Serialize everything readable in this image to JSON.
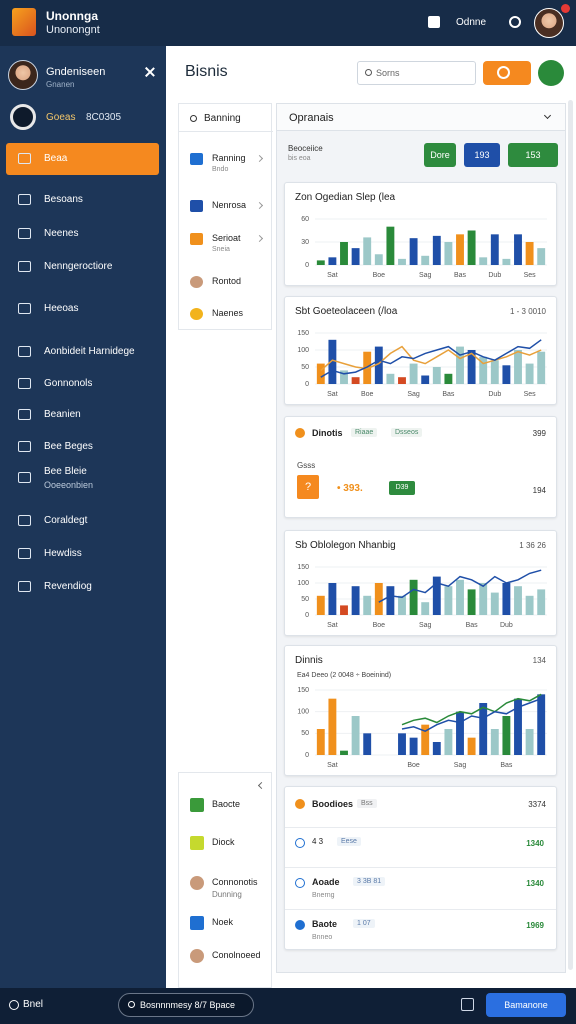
{
  "header": {
    "title": "Unonnga",
    "subtitle": "Unonongnt",
    "user": "Odnne"
  },
  "sidebar": {
    "profile_name": "Gndeniseen",
    "profile_role": "Gnanen",
    "account_name": "Goeas",
    "account_code": "8C0305",
    "items": [
      {
        "label": "Beaa"
      },
      {
        "label": "Besoans"
      },
      {
        "label": "Neenes"
      },
      {
        "label": "Nenngeroctiore"
      },
      {
        "label": "Heeoas"
      },
      {
        "label": "Aonbideit Harnidege"
      },
      {
        "label": "Gonnonols"
      },
      {
        "label": "Beanien"
      },
      {
        "label": "Bee Beges"
      },
      {
        "label": "Bee Bleie",
        "sub": "Ooeeonbien"
      },
      {
        "label": "Coraldegt"
      },
      {
        "label": "Hewdiss"
      },
      {
        "label": "Revendiog"
      }
    ]
  },
  "main": {
    "title": "Bisnis",
    "search": "Sorns"
  },
  "list_panel": {
    "search": "Banning",
    "items": [
      {
        "label": "Ranning",
        "sub": "Bndo"
      },
      {
        "label": "Nenrosa"
      },
      {
        "label": "Serioat",
        "sub": "Sneia"
      },
      {
        "label": "Rontod"
      },
      {
        "label": "Naenes"
      }
    ],
    "bottom_items": [
      {
        "label": "Baocte"
      },
      {
        "label": "Diock"
      },
      {
        "label": "Connonotis",
        "sub": "Dunning"
      },
      {
        "label": "Noek"
      },
      {
        "label": "Conolnoeed"
      }
    ]
  },
  "overview": {
    "title": "Opranais",
    "label": "Beoceiice",
    "sublabel": "bis eoa",
    "buttons": [
      "Dore",
      "193",
      "153"
    ]
  },
  "charts": [
    {
      "title": "Zon Ogedian Slep (lea",
      "ylim": [
        0,
        60
      ],
      "yticks": [
        0,
        30,
        60
      ],
      "categories": [
        null,
        "Sat",
        null,
        null,
        null,
        "Boe",
        null,
        null,
        null,
        "Sag",
        null,
        null,
        "Bas",
        null,
        null,
        "Dub",
        null,
        null,
        "Ses",
        null
      ],
      "bars": {
        "values": [
          6,
          10,
          30,
          22,
          36,
          14,
          50,
          8,
          35,
          12,
          38,
          30,
          40,
          45,
          10,
          40,
          8,
          40,
          30,
          22
        ],
        "colors": [
          "#2a8a3a",
          "#1f4fa8",
          "#2a8a3a",
          "#1f4fa8",
          "#9cc8c8",
          "#9cc8c8",
          "#2a8a3a",
          "#9cc8c8",
          "#1f4fa8",
          "#9cc8c8",
          "#1f4fa8",
          "#9cc8c8",
          "#f0901c",
          "#2a8a3a",
          "#9cc8c8",
          "#1f4fa8",
          "#9cc8c8",
          "#1f4fa8",
          "#f0901c",
          "#9cc8c8"
        ]
      }
    },
    {
      "title": "Sbt Goeteolaceen (/loa",
      "note": "1 - 3 0010",
      "ylim": [
        0,
        150
      ],
      "yticks": [
        0,
        50,
        100,
        150
      ],
      "categories": [
        null,
        "Sat",
        null,
        null,
        "Boe",
        null,
        null,
        null,
        "Sag",
        null,
        null,
        "Bas",
        null,
        null,
        null,
        "Dub",
        null,
        null,
        "Ses",
        null
      ],
      "bars": {
        "values": [
          60,
          130,
          40,
          20,
          95,
          110,
          30,
          20,
          60,
          25,
          50,
          30,
          110,
          100,
          80,
          70,
          55,
          100,
          60,
          95
        ],
        "colors": [
          "#f0901c",
          "#1f4fa8",
          "#9cc8c8",
          "#d44a22",
          "#f0901c",
          "#1f4fa8",
          "#9cc8c8",
          "#d44a22",
          "#9cc8c8",
          "#1f4fa8",
          "#9cc8c8",
          "#2a8a3a",
          "#9cc8c8",
          "#1f4fa8",
          "#9cc8c8",
          "#9cc8c8",
          "#1f4fa8",
          "#9cc8c8",
          "#9cc8c8",
          "#9cc8c8"
        ]
      },
      "lines": [
        {
          "color": "#e8a03a",
          "values": [
            40,
            70,
            60,
            50,
            45,
            60,
            90,
            110,
            70,
            60,
            80,
            100,
            75,
            90,
            60,
            70,
            80,
            95,
            85,
            100
          ]
        },
        {
          "color": "#1f4fa8",
          "values": [
            20,
            40,
            30,
            35,
            50,
            70,
            60,
            80,
            75,
            90,
            100,
            110,
            85,
            95,
            80,
            70,
            90,
            110,
            105,
            130
          ]
        }
      ]
    },
    {
      "title": "Sb Oblolegon Nhanbig",
      "note": "1 36 26",
      "ylim": [
        0,
        150
      ],
      "yticks": [
        0,
        50,
        100,
        150
      ],
      "categories": [
        null,
        "Sat",
        null,
        null,
        null,
        "Boe",
        null,
        null,
        null,
        "Sag",
        null,
        null,
        null,
        "Bas",
        null,
        null,
        "Dub",
        null,
        null,
        null
      ],
      "bars": {
        "values": [
          60,
          100,
          30,
          90,
          60,
          100,
          90,
          60,
          110,
          40,
          120,
          90,
          110,
          80,
          100,
          70,
          100,
          90,
          60,
          80
        ],
        "colors": [
          "#f0901c",
          "#1f4fa8",
          "#d44a22",
          "#1f4fa8",
          "#9cc8c8",
          "#f0901c",
          "#1f4fa8",
          "#9cc8c8",
          "#2a8a3a",
          "#9cc8c8",
          "#1f4fa8",
          "#9cc8c8",
          "#9cc8c8",
          "#2a8a3a",
          "#9cc8c8",
          "#9cc8c8",
          "#1f4fa8",
          "#9cc8c8",
          "#9cc8c8",
          "#9cc8c8"
        ]
      },
      "lines": [
        {
          "color": "#1f4fa8",
          "values": [
            null,
            null,
            null,
            null,
            null,
            40,
            60,
            55,
            80,
            70,
            100,
            90,
            120,
            110,
            90,
            120,
            100,
            110,
            130,
            140
          ]
        }
      ]
    },
    {
      "title": "Dinnis",
      "subtitle": "Ea4  Deeo (2 0048 ÷ Boeinind)",
      "note": "134",
      "ylim": [
        0,
        150
      ],
      "yticks": [
        0,
        50,
        100,
        150
      ],
      "categories": [
        null,
        "Sat",
        null,
        null,
        null,
        null,
        null,
        null,
        "Boe",
        null,
        null,
        null,
        "Sag",
        null,
        null,
        null,
        "Bas",
        null,
        null,
        null
      ],
      "bars": {
        "values": [
          60,
          130,
          10,
          90,
          50,
          null,
          null,
          50,
          40,
          70,
          30,
          60,
          100,
          40,
          120,
          60,
          90,
          130,
          60,
          140
        ],
        "colors": [
          "#f0901c",
          "#f0901c",
          "#2a8a3a",
          "#9cc8c8",
          "#1f4fa8",
          "#9cc8c8",
          "#9cc8c8",
          "#1f4fa8",
          "#1f4fa8",
          "#f0901c",
          "#1f4fa8",
          "#9cc8c8",
          "#1f4fa8",
          "#f0901c",
          "#1f4fa8",
          "#9cc8c8",
          "#2a8a3a",
          "#1f4fa8",
          "#9cc8c8",
          "#1f4fa8"
        ]
      },
      "lines": [
        {
          "color": "#2a8a3a",
          "values": [
            null,
            null,
            null,
            null,
            null,
            null,
            null,
            70,
            80,
            85,
            75,
            90,
            100,
            95,
            110,
            100,
            120,
            130,
            125,
            140
          ]
        },
        {
          "color": "#1f4fa8",
          "values": [
            null,
            null,
            null,
            null,
            null,
            null,
            null,
            60,
            65,
            55,
            70,
            80,
            75,
            90,
            85,
            100,
            95,
            110,
            120,
            130
          ]
        }
      ]
    }
  ],
  "summary": {
    "title": "Dinotis",
    "tags": [
      "Riaae",
      "Dsseos"
    ],
    "value": "399",
    "caption": "Gsss",
    "badge_icon": "?",
    "amount": "• 393.",
    "badge": "D39",
    "total": "194"
  },
  "activity": {
    "title": "Boodioes",
    "tag": "Bss",
    "value": "3374",
    "rows": [
      {
        "label": "4 3",
        "tag": "Eese",
        "value": "1340"
      },
      {
        "label": "Aoade",
        "tag": "3 3B 81",
        "sub": "Bnerng",
        "value": "1340"
      },
      {
        "label": "Baote",
        "tag": "1 07",
        "sub": "Bnneo",
        "value": "1969"
      }
    ]
  },
  "footer": {
    "status": "Bnel",
    "search": "Bosnnnmesy 8/7 Bpace",
    "button": "Bamanone"
  }
}
